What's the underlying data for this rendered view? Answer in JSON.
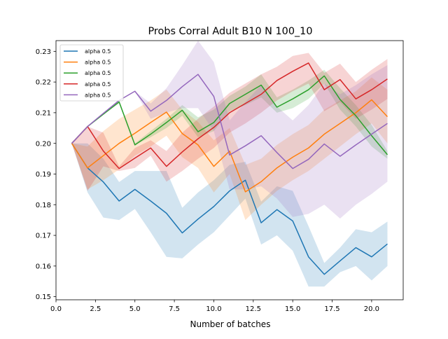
{
  "chart_data": {
    "type": "line",
    "title": "Probs Corral Adult B10 N 100_10",
    "xlabel": "Number of batches",
    "ylabel": "",
    "xlim": [
      0.0,
      22.0
    ],
    "ylim": [
      0.149,
      0.2335
    ],
    "xticks": [
      0.0,
      2.5,
      5.0,
      7.5,
      10.0,
      12.5,
      15.0,
      17.5,
      20.0
    ],
    "xtick_labels": [
      "0.0",
      "2.5",
      "5.0",
      "7.5",
      "10.0",
      "12.5",
      "15.0",
      "17.5",
      "20.0"
    ],
    "yticks": [
      0.15,
      0.16,
      0.17,
      0.18,
      0.19,
      0.2,
      0.21,
      0.22,
      0.23
    ],
    "ytick_labels": [
      "0.15",
      "0.16",
      "0.17",
      "0.18",
      "0.19",
      "0.20",
      "0.21",
      "0.22",
      "0.23"
    ],
    "legend_position": "top-left",
    "grid": false,
    "x": [
      1,
      2,
      3,
      4,
      5,
      6,
      7,
      8,
      9,
      10,
      11,
      12,
      13,
      14,
      15,
      16,
      17,
      18,
      19,
      20,
      21
    ],
    "series": [
      {
        "name": "alpha 0.5",
        "color": "#1f77b4",
        "values": [
          0.2,
          0.192,
          0.1874,
          0.1812,
          0.185,
          0.1812,
          0.1772,
          0.1708,
          0.1753,
          0.1794,
          0.1845,
          0.188,
          0.1741,
          0.1784,
          0.1747,
          0.163,
          0.1573,
          0.1617,
          0.166,
          0.163,
          0.1672
        ],
        "lower": [
          0.2,
          0.184,
          0.1758,
          0.175,
          0.1786,
          0.171,
          0.163,
          0.1625,
          0.167,
          0.171,
          0.1765,
          0.182,
          0.167,
          0.17,
          0.165,
          0.1533,
          0.1533,
          0.158,
          0.16,
          0.1553,
          0.16
        ],
        "upper": [
          0.2,
          0.2,
          0.195,
          0.1874,
          0.191,
          0.191,
          0.191,
          0.179,
          0.184,
          0.188,
          0.193,
          0.194,
          0.181,
          0.186,
          0.1845,
          0.173,
          0.161,
          0.166,
          0.172,
          0.171,
          0.1745
        ]
      },
      {
        "name": "alpha 0.5",
        "color": "#ff7f0e",
        "values": [
          0.2,
          0.192,
          0.196,
          0.2,
          0.2033,
          0.2068,
          0.2102,
          0.2032,
          0.1995,
          0.1925,
          0.1975,
          0.1842,
          0.1875,
          0.192,
          0.1955,
          0.1985,
          0.203,
          0.2065,
          0.21,
          0.2142,
          0.2087
        ],
        "lower": [
          0.2,
          0.185,
          0.188,
          0.1915,
          0.196,
          0.199,
          0.2025,
          0.1955,
          0.192,
          0.184,
          0.19,
          0.175,
          0.18,
          0.1845,
          0.188,
          0.191,
          0.195,
          0.199,
          0.203,
          0.2065,
          0.2
        ],
        "upper": [
          0.2,
          0.199,
          0.204,
          0.208,
          0.211,
          0.214,
          0.2175,
          0.211,
          0.207,
          0.201,
          0.205,
          0.193,
          0.195,
          0.1995,
          0.203,
          0.206,
          0.211,
          0.214,
          0.217,
          0.2215,
          0.2175
        ]
      },
      {
        "name": "alpha 0.5",
        "color": "#2ca02c",
        "values": [
          0.2,
          0.2055,
          0.2095,
          0.2135,
          0.1995,
          0.203,
          0.2068,
          0.2108,
          0.2038,
          0.2068,
          0.213,
          0.216,
          0.219,
          0.2118,
          0.2145,
          0.2175,
          0.222,
          0.2143,
          0.209,
          0.2025,
          0.1963
        ],
        "lower": [
          0.2,
          0.2055,
          0.2095,
          0.213,
          0.1995,
          0.202,
          0.205,
          0.209,
          0.202,
          0.204,
          0.2105,
          0.2125,
          0.215,
          0.21,
          0.2115,
          0.2145,
          0.2195,
          0.211,
          0.2055,
          0.199,
          0.195
        ],
        "upper": [
          0.2,
          0.2055,
          0.2095,
          0.214,
          0.2,
          0.204,
          0.208,
          0.2125,
          0.2085,
          0.211,
          0.2155,
          0.2185,
          0.2225,
          0.215,
          0.2175,
          0.2205,
          0.224,
          0.218,
          0.2125,
          0.206,
          0.1975
        ]
      },
      {
        "name": "alpha 0.5",
        "color": "#d62728",
        "values": [
          0.2,
          0.2055,
          0.1975,
          0.1918,
          0.1952,
          0.1985,
          0.1925,
          0.1972,
          0.2015,
          0.2052,
          0.21,
          0.213,
          0.216,
          0.2205,
          0.2235,
          0.2262,
          0.2175,
          0.2208,
          0.2145,
          0.2175,
          0.221
        ],
        "lower": [
          0.2,
          0.1845,
          0.1925,
          0.191,
          0.192,
          0.196,
          0.1875,
          0.191,
          0.195,
          0.1985,
          0.2035,
          0.2065,
          0.21,
          0.214,
          0.217,
          0.2195,
          0.2105,
          0.2135,
          0.208,
          0.211,
          0.2145
        ],
        "upper": [
          0.2,
          0.2055,
          0.2035,
          0.1925,
          0.1985,
          0.201,
          0.1975,
          0.2035,
          0.208,
          0.212,
          0.2165,
          0.2195,
          0.2225,
          0.225,
          0.2285,
          0.2295,
          0.223,
          0.226,
          0.22,
          0.224,
          0.2275
        ]
      },
      {
        "name": "alpha 0.5",
        "color": "#9467bd",
        "values": [
          0.2,
          0.2055,
          0.2098,
          0.214,
          0.217,
          0.2105,
          0.214,
          0.2185,
          0.2225,
          0.2153,
          0.1962,
          0.1992,
          0.2025,
          0.197,
          0.1918,
          0.1948,
          0.1998,
          0.1958,
          0.1995,
          0.203,
          0.2065
        ],
        "lower": [
          0.2,
          0.2055,
          0.2098,
          0.214,
          0.217,
          0.208,
          0.21,
          0.2115,
          0.2115,
          0.204,
          0.185,
          0.185,
          0.186,
          0.182,
          0.176,
          0.177,
          0.18,
          0.1755,
          0.18,
          0.1835,
          0.1875
        ],
        "upper": [
          0.2,
          0.2055,
          0.2098,
          0.214,
          0.217,
          0.213,
          0.218,
          0.2255,
          0.2335,
          0.2265,
          0.2075,
          0.2135,
          0.219,
          0.212,
          0.2075,
          0.2125,
          0.2195,
          0.216,
          0.219,
          0.2225,
          0.2255
        ]
      }
    ]
  }
}
